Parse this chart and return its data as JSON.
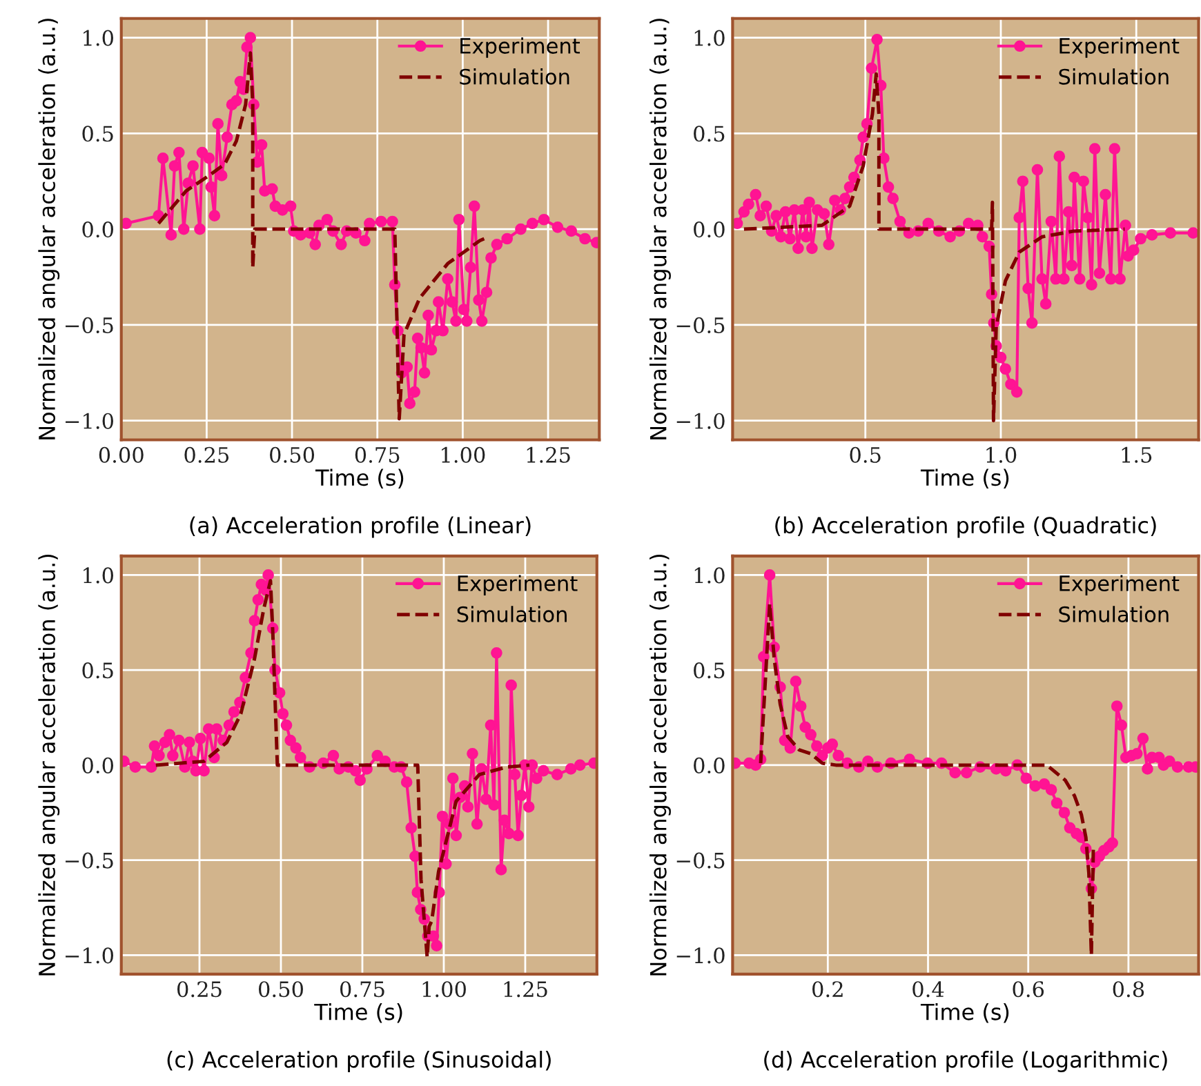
{
  "chart_data": [
    {
      "type": "line",
      "title": "(a) Acceleration profile (Linear)",
      "xlabel": "Time (s)",
      "ylabel": "Normalized angular acceleration (a.u.)",
      "xlim": [
        0,
        1.4
      ],
      "ylim": [
        -1.1,
        1.1
      ],
      "xticks": [
        {
          "value": 0,
          "label": "0.00"
        },
        {
          "value": 0.25,
          "label": "0.25"
        },
        {
          "value": 0.5,
          "label": "0.50"
        },
        {
          "value": 0.75,
          "label": "0.75"
        },
        {
          "value": 1.0,
          "label": "1.00"
        },
        {
          "value": 1.25,
          "label": "1.25"
        }
      ],
      "yticks": [
        {
          "value": -1.0,
          "label": "−1.0"
        },
        {
          "value": -0.5,
          "label": "−0.5"
        },
        {
          "value": 0.0,
          "label": "0.0"
        },
        {
          "value": 0.5,
          "label": "0.5"
        },
        {
          "value": 1.0,
          "label": "1.0"
        }
      ],
      "grid": true,
      "legend": "top right",
      "series": [
        {
          "name": "Experiment",
          "color": "#ff1493",
          "marker": "circle",
          "line_style": "solid",
          "x": [
            0.014,
            0.109,
            0.122,
            0.146,
            0.156,
            0.169,
            0.183,
            0.196,
            0.21,
            0.23,
            0.237,
            0.257,
            0.263,
            0.273,
            0.283,
            0.294,
            0.31,
            0.324,
            0.337,
            0.348,
            0.358,
            0.368,
            0.378,
            0.388,
            0.398,
            0.411,
            0.42,
            0.442,
            0.451,
            0.472,
            0.496,
            0.505,
            0.525,
            0.552,
            0.568,
            0.579,
            0.603,
            0.62,
            0.644,
            0.66,
            0.687,
            0.713,
            0.727,
            0.761,
            0.794,
            0.801,
            0.81,
            0.821,
            0.837,
            0.845,
            0.859,
            0.868,
            0.878,
            0.888,
            0.899,
            0.908,
            0.922,
            0.929,
            0.942,
            0.956,
            0.969,
            0.98,
            0.989,
            1.003,
            1.012,
            1.023,
            1.034,
            1.047,
            1.056,
            1.07,
            1.083,
            1.1,
            1.13,
            1.17,
            1.204,
            1.238,
            1.278,
            1.318,
            1.358,
            1.392
          ],
          "values": [
            0.03,
            0.07,
            0.37,
            -0.03,
            0.33,
            0.4,
            0.0,
            0.24,
            0.33,
            0.0,
            0.4,
            0.37,
            0.22,
            0.07,
            0.55,
            0.28,
            0.48,
            0.65,
            0.67,
            0.77,
            0.73,
            0.95,
            1.0,
            0.65,
            0.35,
            0.44,
            0.2,
            0.21,
            0.12,
            0.1,
            0.12,
            -0.01,
            -0.03,
            -0.02,
            -0.08,
            0.02,
            0.05,
            -0.01,
            -0.08,
            -0.01,
            -0.02,
            -0.06,
            0.03,
            0.04,
            0.04,
            -0.29,
            -0.53,
            -0.75,
            -0.72,
            -0.91,
            -0.85,
            -0.57,
            -0.62,
            -0.75,
            -0.45,
            -0.63,
            -0.53,
            -0.38,
            -0.53,
            -0.26,
            -0.38,
            -0.48,
            0.05,
            -0.42,
            -0.48,
            -0.2,
            0.12,
            -0.37,
            -0.48,
            -0.33,
            -0.15,
            -0.08,
            -0.05,
            0.0,
            0.03,
            0.05,
            0.01,
            -0.01,
            -0.05,
            -0.07
          ]
        },
        {
          "name": "Simulation",
          "color": "#800000",
          "marker": "none",
          "line_style": "dashed",
          "x": [
            0.109,
            0.19,
            0.257,
            0.303,
            0.337,
            0.364,
            0.378,
            0.385,
            0.385,
            0.391,
            0.801,
            0.814,
            0.828,
            0.874,
            0.956,
            1.05,
            1.063
          ],
          "values": [
            0.03,
            0.2,
            0.28,
            0.34,
            0.46,
            0.65,
            0.92,
            0.65,
            -0.2,
            0.0,
            0.0,
            -0.99,
            -0.55,
            -0.36,
            -0.18,
            -0.06,
            -0.05
          ]
        }
      ]
    },
    {
      "type": "line",
      "title": "(b) Acceleration profile (Quadratic)",
      "xlabel": "Time (s)",
      "ylabel": "Normalized angular acceleration (a.u.)",
      "xlim": [
        0.01,
        1.73
      ],
      "ylim": [
        -1.1,
        1.1
      ],
      "xticks": [
        {
          "value": 0.5,
          "label": "0.5"
        },
        {
          "value": 1.0,
          "label": "1.0"
        },
        {
          "value": 1.5,
          "label": "1.5"
        }
      ],
      "yticks": [
        {
          "value": -1.0,
          "label": "−1.0"
        },
        {
          "value": -0.5,
          "label": "−0.5"
        },
        {
          "value": 0.0,
          "label": "0.0"
        },
        {
          "value": 0.5,
          "label": "0.5"
        },
        {
          "value": 1.0,
          "label": "1.0"
        }
      ],
      "grid": true,
      "legend": "top right",
      "series": [
        {
          "name": "Experiment",
          "color": "#ff1493",
          "marker": "circle",
          "line_style": "solid",
          "x": [
            0.027,
            0.052,
            0.069,
            0.095,
            0.112,
            0.134,
            0.154,
            0.171,
            0.188,
            0.205,
            0.222,
            0.238,
            0.252,
            0.269,
            0.281,
            0.293,
            0.303,
            0.323,
            0.348,
            0.365,
            0.387,
            0.408,
            0.425,
            0.442,
            0.458,
            0.48,
            0.492,
            0.506,
            0.523,
            0.543,
            0.557,
            0.568,
            0.585,
            0.602,
            0.628,
            0.661,
            0.695,
            0.732,
            0.771,
            0.813,
            0.847,
            0.881,
            0.915,
            0.932,
            0.957,
            0.966,
            0.974,
            0.983,
            1.0,
            1.017,
            1.037,
            1.059,
            1.068,
            1.081,
            1.101,
            1.115,
            1.135,
            1.152,
            1.166,
            1.186,
            1.203,
            1.216,
            1.233,
            1.25,
            1.262,
            1.271,
            1.291,
            1.305,
            1.321,
            1.335,
            1.347,
            1.364,
            1.386,
            1.406,
            1.42,
            1.44,
            1.46,
            1.47,
            1.49,
            1.516,
            1.558,
            1.626,
            1.71
          ],
          "values": [
            0.03,
            0.09,
            0.13,
            0.18,
            0.07,
            0.12,
            -0.01,
            0.07,
            -0.04,
            0.09,
            -0.05,
            0.1,
            -0.1,
            0.1,
            -0.04,
            0.14,
            -0.1,
            0.1,
            0.08,
            -0.08,
            0.15,
            0.1,
            0.16,
            0.22,
            0.27,
            0.36,
            0.48,
            0.55,
            0.84,
            0.99,
            0.75,
            0.37,
            0.22,
            0.16,
            0.04,
            -0.02,
            -0.01,
            0.03,
            -0.01,
            -0.04,
            -0.01,
            0.03,
            0.02,
            -0.04,
            -0.09,
            -0.34,
            -0.49,
            -0.61,
            -0.67,
            -0.73,
            -0.81,
            -0.85,
            0.06,
            0.25,
            -0.31,
            -0.49,
            0.31,
            -0.26,
            -0.39,
            0.04,
            -0.26,
            0.38,
            -0.26,
            0.09,
            -0.19,
            0.27,
            -0.26,
            0.25,
            0.06,
            -0.29,
            0.42,
            -0.23,
            0.18,
            -0.26,
            0.42,
            -0.26,
            0.02,
            -0.14,
            -0.11,
            -0.05,
            -0.03,
            -0.02,
            -0.02
          ]
        },
        {
          "name": "Simulation",
          "color": "#800000",
          "marker": "none",
          "line_style": "dashed",
          "x": [
            0.052,
            0.34,
            0.442,
            0.492,
            0.526,
            0.54,
            0.55,
            0.55,
            0.966,
            0.969,
            0.973,
            0.983,
            1.017,
            1.068,
            1.152,
            1.27,
            1.457
          ],
          "values": [
            0.0,
            0.02,
            0.12,
            0.33,
            0.6,
            0.81,
            0.6,
            0.0,
            0.0,
            0.14,
            -1.0,
            -0.51,
            -0.27,
            -0.12,
            -0.04,
            -0.01,
            0.0
          ]
        }
      ]
    },
    {
      "type": "line",
      "title": "(c) Acceleration profile (Sinusoidal)",
      "xlabel": "Time (s)",
      "ylabel": "Normalized angular acceleration (a.u.)",
      "xlim": [
        0.01,
        1.47
      ],
      "ylim": [
        -1.1,
        1.1
      ],
      "xticks": [
        {
          "value": 0.25,
          "label": "0.25"
        },
        {
          "value": 0.5,
          "label": "0.50"
        },
        {
          "value": 0.75,
          "label": "0.75"
        },
        {
          "value": 1.0,
          "label": "1.00"
        },
        {
          "value": 1.25,
          "label": "1.25"
        }
      ],
      "yticks": [
        {
          "value": -1.0,
          "label": "−1.0"
        },
        {
          "value": -0.5,
          "label": "−0.5"
        },
        {
          "value": 0.0,
          "label": "0.0"
        },
        {
          "value": 0.5,
          "label": "0.5"
        },
        {
          "value": 1.0,
          "label": "1.0"
        }
      ],
      "grid": true,
      "legend": "top right",
      "series": [
        {
          "name": "Experiment",
          "color": "#ff1493",
          "marker": "circle",
          "line_style": "solid",
          "x": [
            0.018,
            0.053,
            0.102,
            0.112,
            0.126,
            0.144,
            0.158,
            0.168,
            0.187,
            0.205,
            0.219,
            0.229,
            0.239,
            0.253,
            0.264,
            0.278,
            0.295,
            0.303,
            0.323,
            0.341,
            0.356,
            0.374,
            0.391,
            0.408,
            0.419,
            0.43,
            0.44,
            0.454,
            0.461,
            0.475,
            0.482,
            0.496,
            0.506,
            0.517,
            0.529,
            0.546,
            0.56,
            0.588,
            0.63,
            0.661,
            0.679,
            0.707,
            0.729,
            0.743,
            0.764,
            0.796,
            0.82,
            0.848,
            0.869,
            0.886,
            0.9,
            0.912,
            0.919,
            0.929,
            0.94,
            0.951,
            0.968,
            0.978,
            0.986,
            0.996,
            1.007,
            1.017,
            1.028,
            1.038,
            1.05,
            1.064,
            1.074,
            1.088,
            1.102,
            1.116,
            1.13,
            1.144,
            1.154,
            1.162,
            1.176,
            1.186,
            1.2,
            1.207,
            1.218,
            1.228,
            1.238,
            1.249,
            1.261,
            1.271,
            1.285,
            1.306,
            1.348,
            1.39,
            1.418,
            1.461
          ],
          "values": [
            0.02,
            -0.01,
            -0.01,
            0.1,
            0.05,
            0.12,
            0.16,
            0.05,
            0.13,
            -0.01,
            0.12,
            0.02,
            -0.03,
            0.14,
            -0.03,
            0.19,
            0.04,
            0.19,
            0.13,
            0.21,
            0.28,
            0.33,
            0.46,
            0.59,
            0.76,
            0.87,
            0.95,
            0.92,
            1.0,
            0.72,
            0.5,
            0.38,
            0.27,
            0.21,
            0.13,
            0.09,
            0.04,
            -0.01,
            0.01,
            0.05,
            -0.02,
            -0.01,
            -0.03,
            -0.08,
            -0.02,
            0.05,
            0.02,
            -0.01,
            -0.01,
            -0.09,
            -0.33,
            -0.48,
            -0.67,
            -0.76,
            -0.81,
            -0.9,
            -0.9,
            -0.95,
            -0.67,
            -0.27,
            -0.52,
            -0.31,
            -0.07,
            -0.37,
            -0.17,
            -0.11,
            -0.22,
            0.06,
            -0.31,
            -0.02,
            -0.18,
            0.21,
            -0.21,
            0.59,
            -0.55,
            -0.29,
            -0.36,
            0.42,
            -0.05,
            -0.37,
            -0.16,
            0.0,
            -0.22,
            0.0,
            -0.07,
            -0.03,
            -0.05,
            -0.02,
            0.0,
            0.01
          ]
        },
        {
          "name": "Simulation",
          "color": "#800000",
          "marker": "none",
          "line_style": "dashed",
          "x": [
            0.116,
            0.264,
            0.334,
            0.377,
            0.419,
            0.447,
            0.468,
            0.475,
            0.489,
            0.92,
            0.93,
            0.949,
            0.955,
            0.963,
            0.984,
            1.038,
            1.109,
            1.193,
            1.263
          ],
          "values": [
            0.0,
            0.02,
            0.12,
            0.27,
            0.56,
            0.82,
            0.97,
            0.7,
            0.0,
            0.0,
            -0.6,
            -1.01,
            -0.85,
            -0.82,
            -0.56,
            -0.19,
            -0.05,
            -0.01,
            0.0
          ]
        }
      ]
    },
    {
      "type": "line",
      "title": "(d) Acceleration profile (Logarithmic)",
      "xlabel": "Time (s)",
      "ylabel": "Normalized angular acceleration (a.u.)",
      "xlim": [
        0.01,
        0.94
      ],
      "ylim": [
        -1.1,
        1.1
      ],
      "xticks": [
        {
          "value": 0.2,
          "label": "0.2"
        },
        {
          "value": 0.4,
          "label": "0.4"
        },
        {
          "value": 0.6,
          "label": "0.6"
        },
        {
          "value": 0.8,
          "label": "0.8"
        }
      ],
      "yticks": [
        {
          "value": -1.0,
          "label": "−1.0"
        },
        {
          "value": -0.5,
          "label": "−0.5"
        },
        {
          "value": 0.0,
          "label": "0.0"
        },
        {
          "value": 0.5,
          "label": "0.5"
        },
        {
          "value": 1.0,
          "label": "1.0"
        }
      ],
      "grid": true,
      "legend": "top right",
      "series": [
        {
          "name": "Experiment",
          "color": "#ff1493",
          "marker": "circle",
          "line_style": "solid",
          "x": [
            0.015,
            0.043,
            0.056,
            0.066,
            0.072,
            0.084,
            0.093,
            0.105,
            0.114,
            0.125,
            0.136,
            0.146,
            0.155,
            0.166,
            0.178,
            0.189,
            0.2,
            0.209,
            0.221,
            0.239,
            0.262,
            0.28,
            0.299,
            0.326,
            0.363,
            0.399,
            0.427,
            0.454,
            0.477,
            0.504,
            0.536,
            0.555,
            0.578,
            0.596,
            0.614,
            0.632,
            0.646,
            0.657,
            0.672,
            0.683,
            0.696,
            0.706,
            0.715,
            0.726,
            0.733,
            0.742,
            0.751,
            0.761,
            0.768,
            0.777,
            0.786,
            0.795,
            0.806,
            0.817,
            0.829,
            0.838,
            0.847,
            0.861,
            0.87,
            0.882,
            0.898,
            0.92,
            0.934
          ],
          "values": [
            0.01,
            0.01,
            0.0,
            0.03,
            0.57,
            1.0,
            0.62,
            0.41,
            0.13,
            0.09,
            0.44,
            0.31,
            0.2,
            0.16,
            0.1,
            0.05,
            0.09,
            0.11,
            0.05,
            0.01,
            -0.01,
            0.02,
            -0.01,
            0.01,
            0.03,
            0.01,
            0.01,
            -0.04,
            -0.04,
            -0.01,
            -0.02,
            -0.03,
            0.0,
            -0.07,
            -0.11,
            -0.1,
            -0.13,
            -0.2,
            -0.25,
            -0.33,
            -0.36,
            -0.38,
            -0.44,
            -0.65,
            -0.51,
            -0.48,
            -0.45,
            -0.43,
            -0.41,
            0.31,
            0.21,
            0.04,
            0.05,
            0.06,
            0.14,
            -0.02,
            0.04,
            0.04,
            0.0,
            0.02,
            -0.01,
            -0.01,
            -0.01
          ]
        },
        {
          "name": "Simulation",
          "color": "#800000",
          "marker": "none",
          "line_style": "dashed",
          "x": [
            0.066,
            0.084,
            0.093,
            0.105,
            0.12,
            0.143,
            0.166,
            0.189,
            0.216,
            0.637,
            0.674,
            0.692,
            0.706,
            0.715,
            0.721,
            0.726,
            0.73
          ],
          "values": [
            0.01,
            0.85,
            0.56,
            0.32,
            0.15,
            0.08,
            0.06,
            0.01,
            0.0,
            0.0,
            -0.08,
            -0.16,
            -0.26,
            -0.38,
            -0.57,
            -1.0,
            -0.43
          ]
        }
      ]
    }
  ]
}
